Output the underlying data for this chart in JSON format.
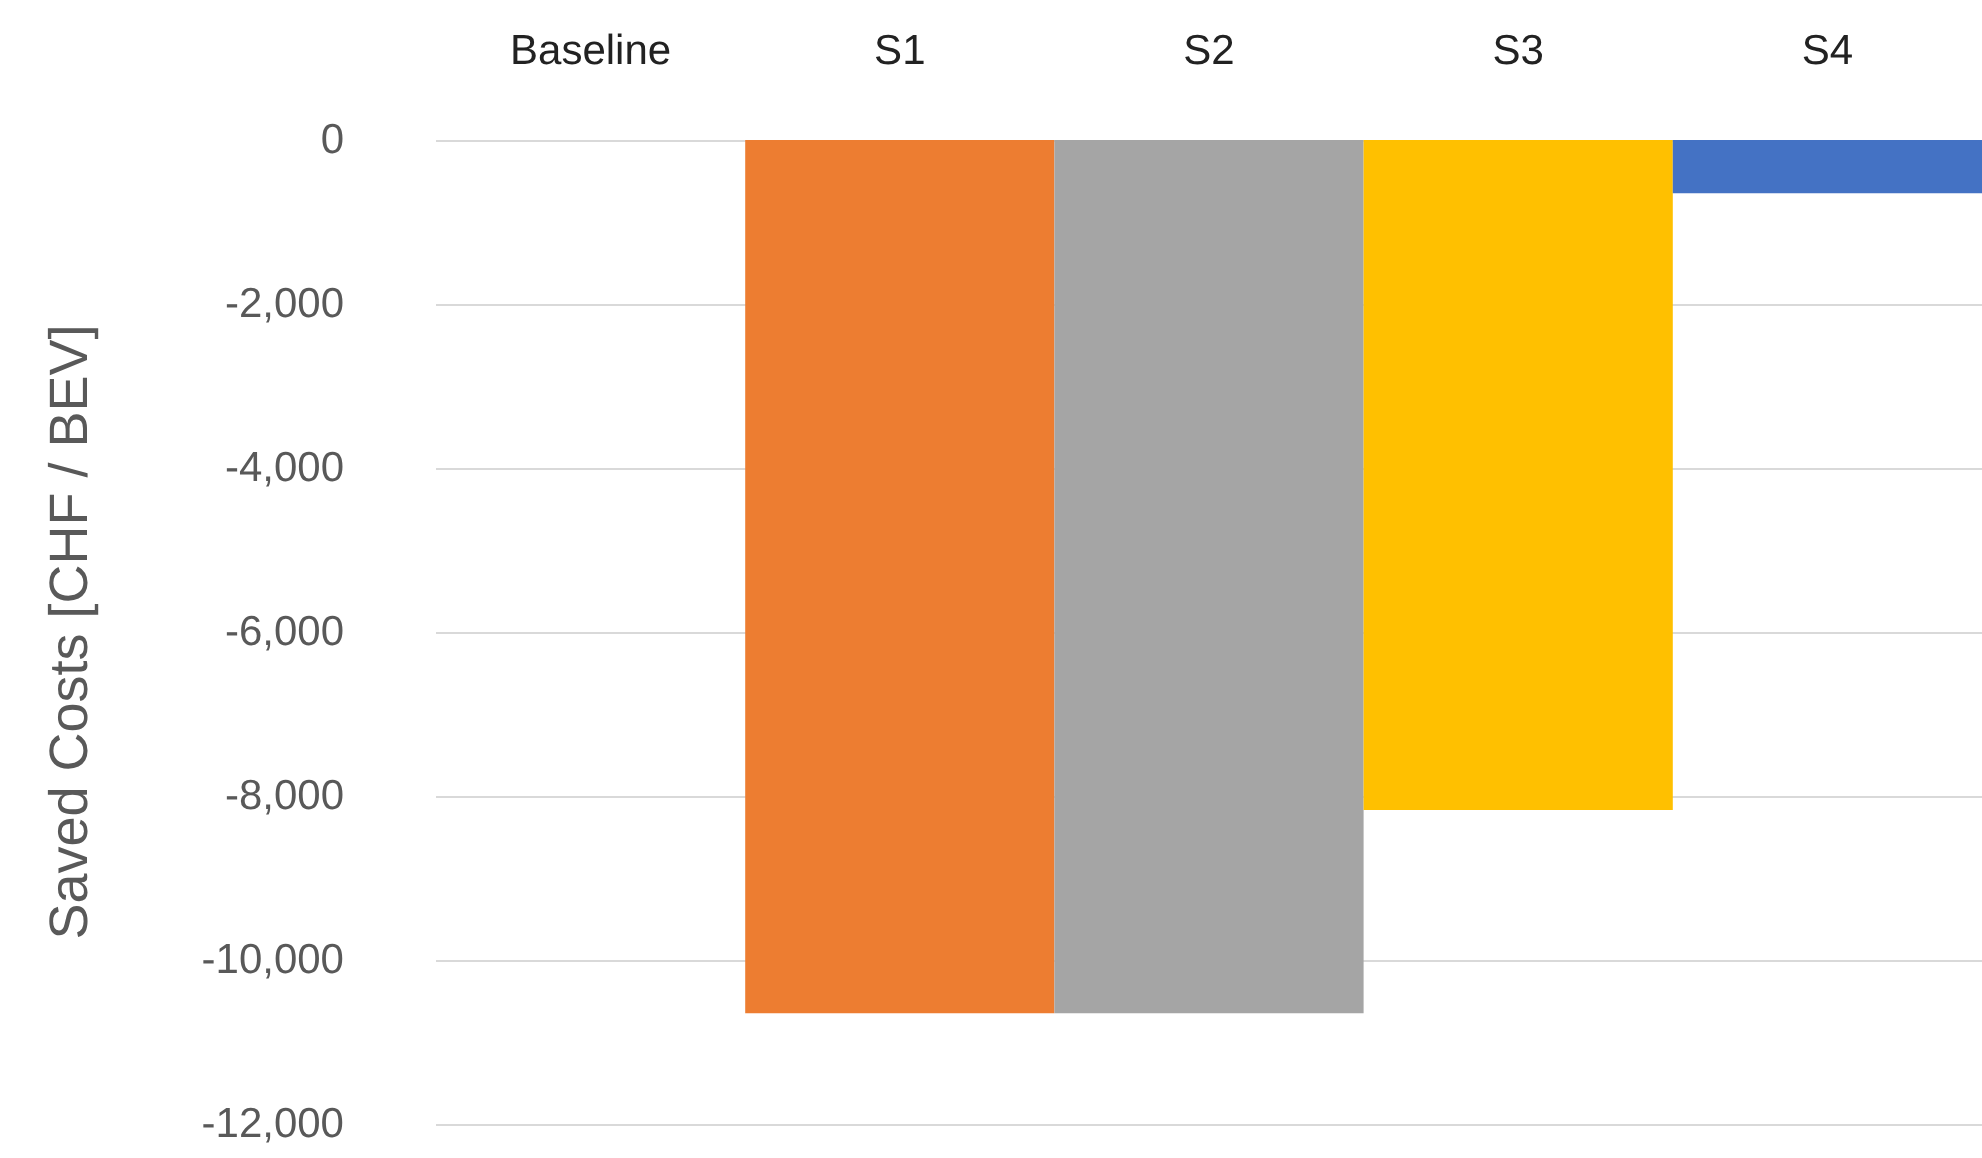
{
  "chart_data": {
    "type": "bar",
    "ylabel": "Saved Costs [CHF / BEV]",
    "categories": [
      "Baseline",
      "S1",
      "S2",
      "S3",
      "S4"
    ],
    "values": [
      0,
      -10650,
      -10650,
      -8170,
      -650
    ],
    "colors": [
      "#4472c4",
      "#ed7d31",
      "#a5a5a5",
      "#ffc000",
      "#4472c4"
    ],
    "ylim": [
      -12000,
      0
    ],
    "yticks": [
      {
        "value": 0,
        "label": "0"
      },
      {
        "value": -2000,
        "label": "-2,000"
      },
      {
        "value": -4000,
        "label": "-4,000"
      },
      {
        "value": -6000,
        "label": "-6,000"
      },
      {
        "value": -8000,
        "label": "-8,000"
      },
      {
        "value": -10000,
        "label": "-10,000"
      },
      {
        "value": -12000,
        "label": "-12,000"
      }
    ],
    "grid": "y"
  }
}
